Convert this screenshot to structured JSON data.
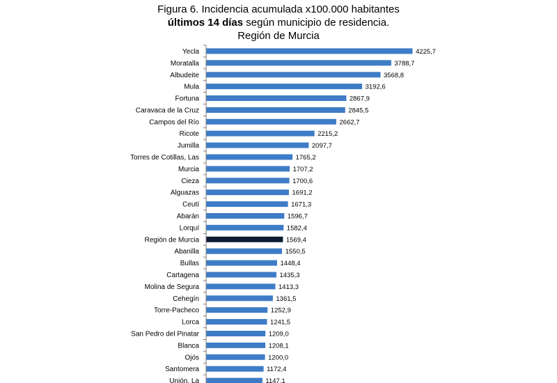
{
  "title": {
    "line1": "Figura 6. Incidencia acumulada x100.000 habitantes",
    "line2_bold": "últimos 14 días",
    "line2_rest": " según municipio de residencia.",
    "line3": "Región de Murcia"
  },
  "colors": {
    "bar": "#3F7CC7",
    "highlight": "#0D1B33",
    "axis": "#7F7F7F"
  },
  "chart_data": {
    "type": "bar",
    "orientation": "horizontal",
    "title": "Figura 6. Incidencia acumulada x100.000 habitantes últimos 14 días según municipio de residencia. Región de Murcia",
    "categories": [
      "Yecla",
      "Moratalla",
      "Albudeite",
      "Mula",
      "Fortuna",
      "Caravaca de la Cruz",
      "Campos del Río",
      "Ricote",
      "Jumilla",
      "Torres de Cotillas, Las",
      "Murcia",
      "Cieza",
      "Alguazas",
      "Ceutí",
      "Abarán",
      "Lorquí",
      "Región de Murcia",
      "Abanilla",
      "Bullas",
      "Cartagena",
      "Molina de Segura",
      "Cehegín",
      "Torre-Pacheco",
      "Lorca",
      "San Pedro del Pinatar",
      "Blanca",
      "Ojós",
      "Santomera",
      "Unión, La"
    ],
    "values": [
      4225.7,
      3788.7,
      3568.8,
      3192.6,
      2867.9,
      2845.5,
      2662.7,
      2215.2,
      2097.7,
      1765.2,
      1707.2,
      1700.6,
      1691.2,
      1671.3,
      1596.7,
      1582.4,
      1569.4,
      1550.5,
      1448.4,
      1435.3,
      1413.3,
      1361.5,
      1252.9,
      1241.5,
      1209.0,
      1208.1,
      1200.0,
      1172.4,
      1147.1
    ],
    "value_labels": [
      "4225,7",
      "3788,7",
      "3568,8",
      "3192,6",
      "2867,9",
      "2845,5",
      "2662,7",
      "2215,2",
      "2097,7",
      "1765,2",
      "1707,2",
      "1700,6",
      "1691,2",
      "1671,3",
      "1596,7",
      "1582,4",
      "1569,4",
      "1550,5",
      "1448,4",
      "1435,3",
      "1413,3",
      "1361,5",
      "1252,9",
      "1241,5",
      "1209,0",
      "1208,1",
      "1200,0",
      "1172,4",
      "1147,1"
    ],
    "highlight_category": "Región de Murcia",
    "xlim": [
      0,
      4225.7
    ],
    "grid": false,
    "legend": "none"
  }
}
